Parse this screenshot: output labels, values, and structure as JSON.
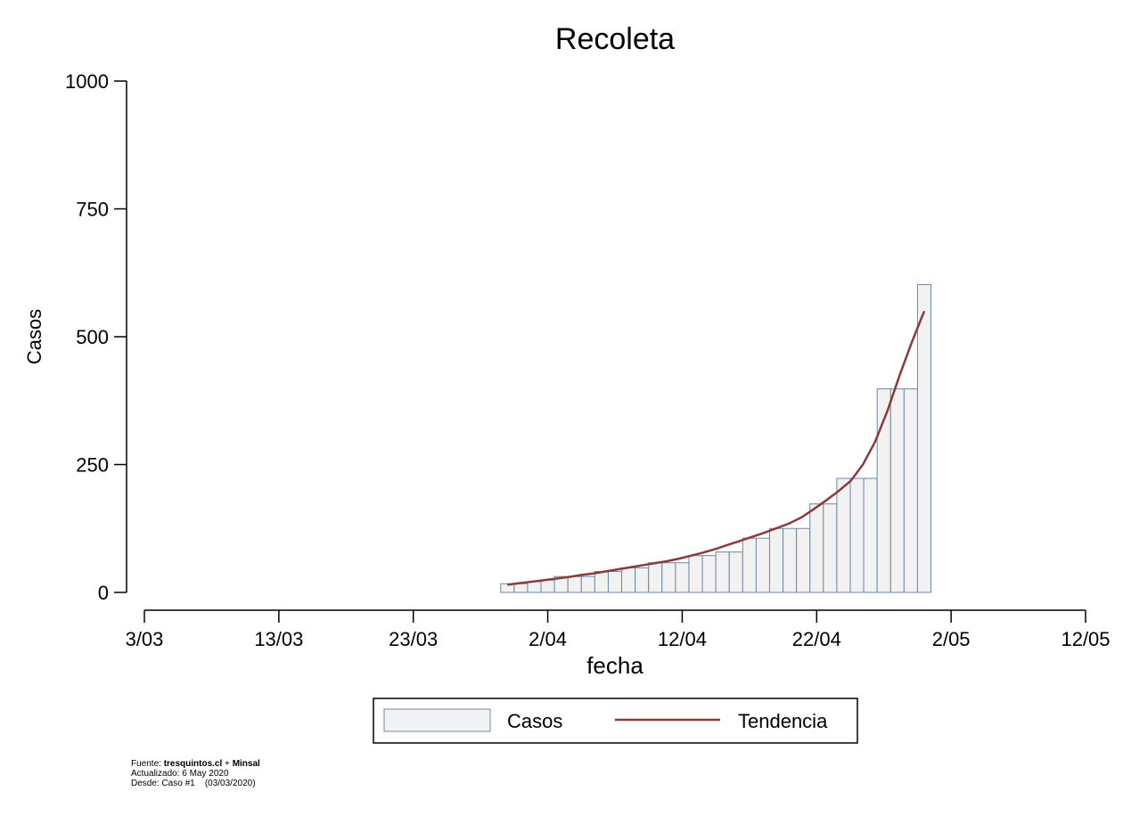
{
  "chart_data": {
    "type": "bar",
    "title": "Recoleta",
    "xlabel": "fecha",
    "ylabel": "Casos",
    "ylim": [
      0,
      1000
    ],
    "y_ticks": [
      "0",
      "250",
      "500",
      "750",
      "1000"
    ],
    "y_tick_values": [
      0,
      250,
      500,
      750,
      1000
    ],
    "x_ticks": [
      "3/03",
      "13/03",
      "23/03",
      "2/04",
      "12/04",
      "22/04",
      "2/05",
      "12/05"
    ],
    "x_tick_days": [
      0,
      10,
      20,
      30,
      40,
      50,
      60,
      70
    ],
    "xlim_days": [
      0,
      70
    ],
    "legend_position": "bottom",
    "legend": [
      "Casos",
      "Tendencia"
    ],
    "bar_start_day": 27,
    "series": [
      {
        "name": "Casos",
        "type": "bar",
        "fill": "#f2f2f2",
        "stroke": "#6e87a8",
        "values": [
          17,
          17,
          21,
          24,
          31,
          31,
          31,
          41,
          41,
          48,
          48,
          58,
          58,
          58,
          72,
          72,
          79,
          79,
          106,
          106,
          125,
          125,
          125,
          173,
          173,
          223,
          223,
          223,
          398,
          398,
          398,
          602
        ]
      },
      {
        "name": "Tendencia",
        "type": "line",
        "color": "#8b3a3a",
        "values": [
          15,
          18,
          21,
          24,
          27,
          30,
          34,
          37,
          41,
          45,
          49,
          53,
          57,
          61,
          66,
          72,
          78,
          85,
          93,
          101,
          109,
          117,
          126,
          135,
          147,
          163,
          180,
          198,
          218,
          250,
          295,
          355,
          425,
          490,
          550
        ]
      }
    ]
  },
  "source_note": {
    "prefix": "Fuente: ",
    "site": "tresquintos.cl",
    "plus": " + ",
    "org": "Minsal",
    "updated": "Actualizado: 6 May 2020",
    "since": "Desde: Caso #1    (03/03/2020)"
  }
}
